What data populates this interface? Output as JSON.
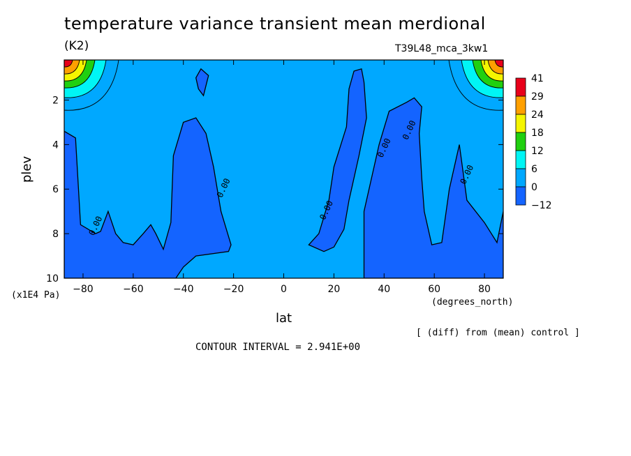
{
  "chart_data": {
    "type": "contour",
    "title": "temperature variance transient mean merdional",
    "units": "(K2)",
    "run_label": "T39L48_mca_3kw1",
    "xlabel": "lat",
    "xunits": "(degrees_north)",
    "ylabel": "plev",
    "yunits": "(x1E4 Pa)",
    "xlim": [
      -87.5,
      87.5
    ],
    "ylim": [
      10,
      0.2
    ],
    "xticks": [
      -80,
      -60,
      -40,
      -20,
      0,
      20,
      40,
      60,
      80
    ],
    "yticks": [
      2,
      4,
      6,
      8,
      10
    ],
    "colorbar": {
      "levels": [
        "41",
        "29",
        "24",
        "18",
        "12",
        "6",
        "0",
        "-12"
      ],
      "colors": [
        "#e8001a",
        "#ffa000",
        "#f5f500",
        "#20d010",
        "#00f5f5",
        "#00a8ff",
        "#1464ff"
      ]
    },
    "regions": [
      {
        "kind": "negative",
        "value_range": "-12..0",
        "polygon": [
          [
            -87.5,
            3.4
          ],
          [
            -83,
            3.7
          ],
          [
            -81,
            7.6
          ],
          [
            -75,
            8.0
          ],
          [
            -73,
            7.9
          ],
          [
            -70,
            7.0
          ],
          [
            -67,
            8.0
          ],
          [
            -64,
            8.4
          ],
          [
            -60,
            8.5
          ],
          [
            -56,
            8.0
          ],
          [
            -53,
            7.6
          ],
          [
            -51,
            8.0
          ],
          [
            -48,
            8.7
          ],
          [
            -45,
            7.5
          ],
          [
            -44,
            4.5
          ],
          [
            -40,
            3.0
          ],
          [
            -35,
            2.8
          ],
          [
            -31,
            3.5
          ],
          [
            -28,
            5.0
          ],
          [
            -25,
            7.0
          ],
          [
            -21,
            8.5
          ],
          [
            -22,
            8.8
          ],
          [
            -35,
            9.0
          ],
          [
            -40,
            9.5
          ],
          [
            -43,
            10
          ],
          [
            -87.5,
            10
          ]
        ]
      },
      {
        "kind": "negative",
        "value_range": "-12..0",
        "polygon": [
          [
            -35,
            1.0
          ],
          [
            -33,
            0.6
          ],
          [
            -30,
            0.9
          ],
          [
            -32,
            1.8
          ],
          [
            -34,
            1.5
          ]
        ]
      },
      {
        "kind": "negative",
        "value_range": "-12..0",
        "polygon": [
          [
            10,
            8.5
          ],
          [
            14,
            8.0
          ],
          [
            18,
            6.5
          ],
          [
            20,
            5.0
          ],
          [
            25,
            3.2
          ],
          [
            26,
            1.5
          ],
          [
            28,
            0.7
          ],
          [
            31,
            0.6
          ],
          [
            32,
            1.2
          ],
          [
            33,
            2.8
          ],
          [
            30,
            4.5
          ],
          [
            26,
            6.5
          ],
          [
            24,
            7.8
          ],
          [
            20,
            8.6
          ],
          [
            16,
            8.8
          ]
        ]
      },
      {
        "kind": "negative",
        "value_range": "-12..0",
        "polygon": [
          [
            32,
            10
          ],
          [
            32,
            7.0
          ],
          [
            38,
            4.0
          ],
          [
            42,
            2.5
          ],
          [
            49,
            2.1
          ],
          [
            52,
            1.9
          ],
          [
            55,
            2.3
          ],
          [
            54,
            3.5
          ],
          [
            55,
            5.5
          ],
          [
            56,
            7.0
          ],
          [
            59,
            8.5
          ],
          [
            63,
            8.4
          ],
          [
            66,
            6.0
          ],
          [
            69,
            4.5
          ],
          [
            70,
            4.0
          ],
          [
            73,
            6.5
          ],
          [
            80,
            7.5
          ],
          [
            85,
            8.4
          ],
          [
            87.5,
            7.0
          ],
          [
            87.5,
            10
          ]
        ]
      },
      {
        "kind": "positive",
        "value_range": "0..41",
        "location": "north-pole-top"
      },
      {
        "kind": "positive",
        "value_range": "0..41",
        "location": "south-pole-top"
      }
    ],
    "contour_labels": [
      {
        "text": "0.00",
        "x": -74,
        "y": 7.7
      },
      {
        "text": "0.00",
        "x": -23,
        "y": 6.0
      },
      {
        "text": "0.00",
        "x": 18,
        "y": 7.0
      },
      {
        "text": "0.00",
        "x": 41,
        "y": 4.2
      },
      {
        "text": "0.00",
        "x": 51,
        "y": 3.4
      },
      {
        "text": "0.00",
        "x": 74,
        "y": 5.4
      }
    ]
  },
  "footer": {
    "diff_label": "[ (diff) from (mean) control ]",
    "contour_interval": "CONTOUR INTERVAL = 2.941E+00"
  }
}
